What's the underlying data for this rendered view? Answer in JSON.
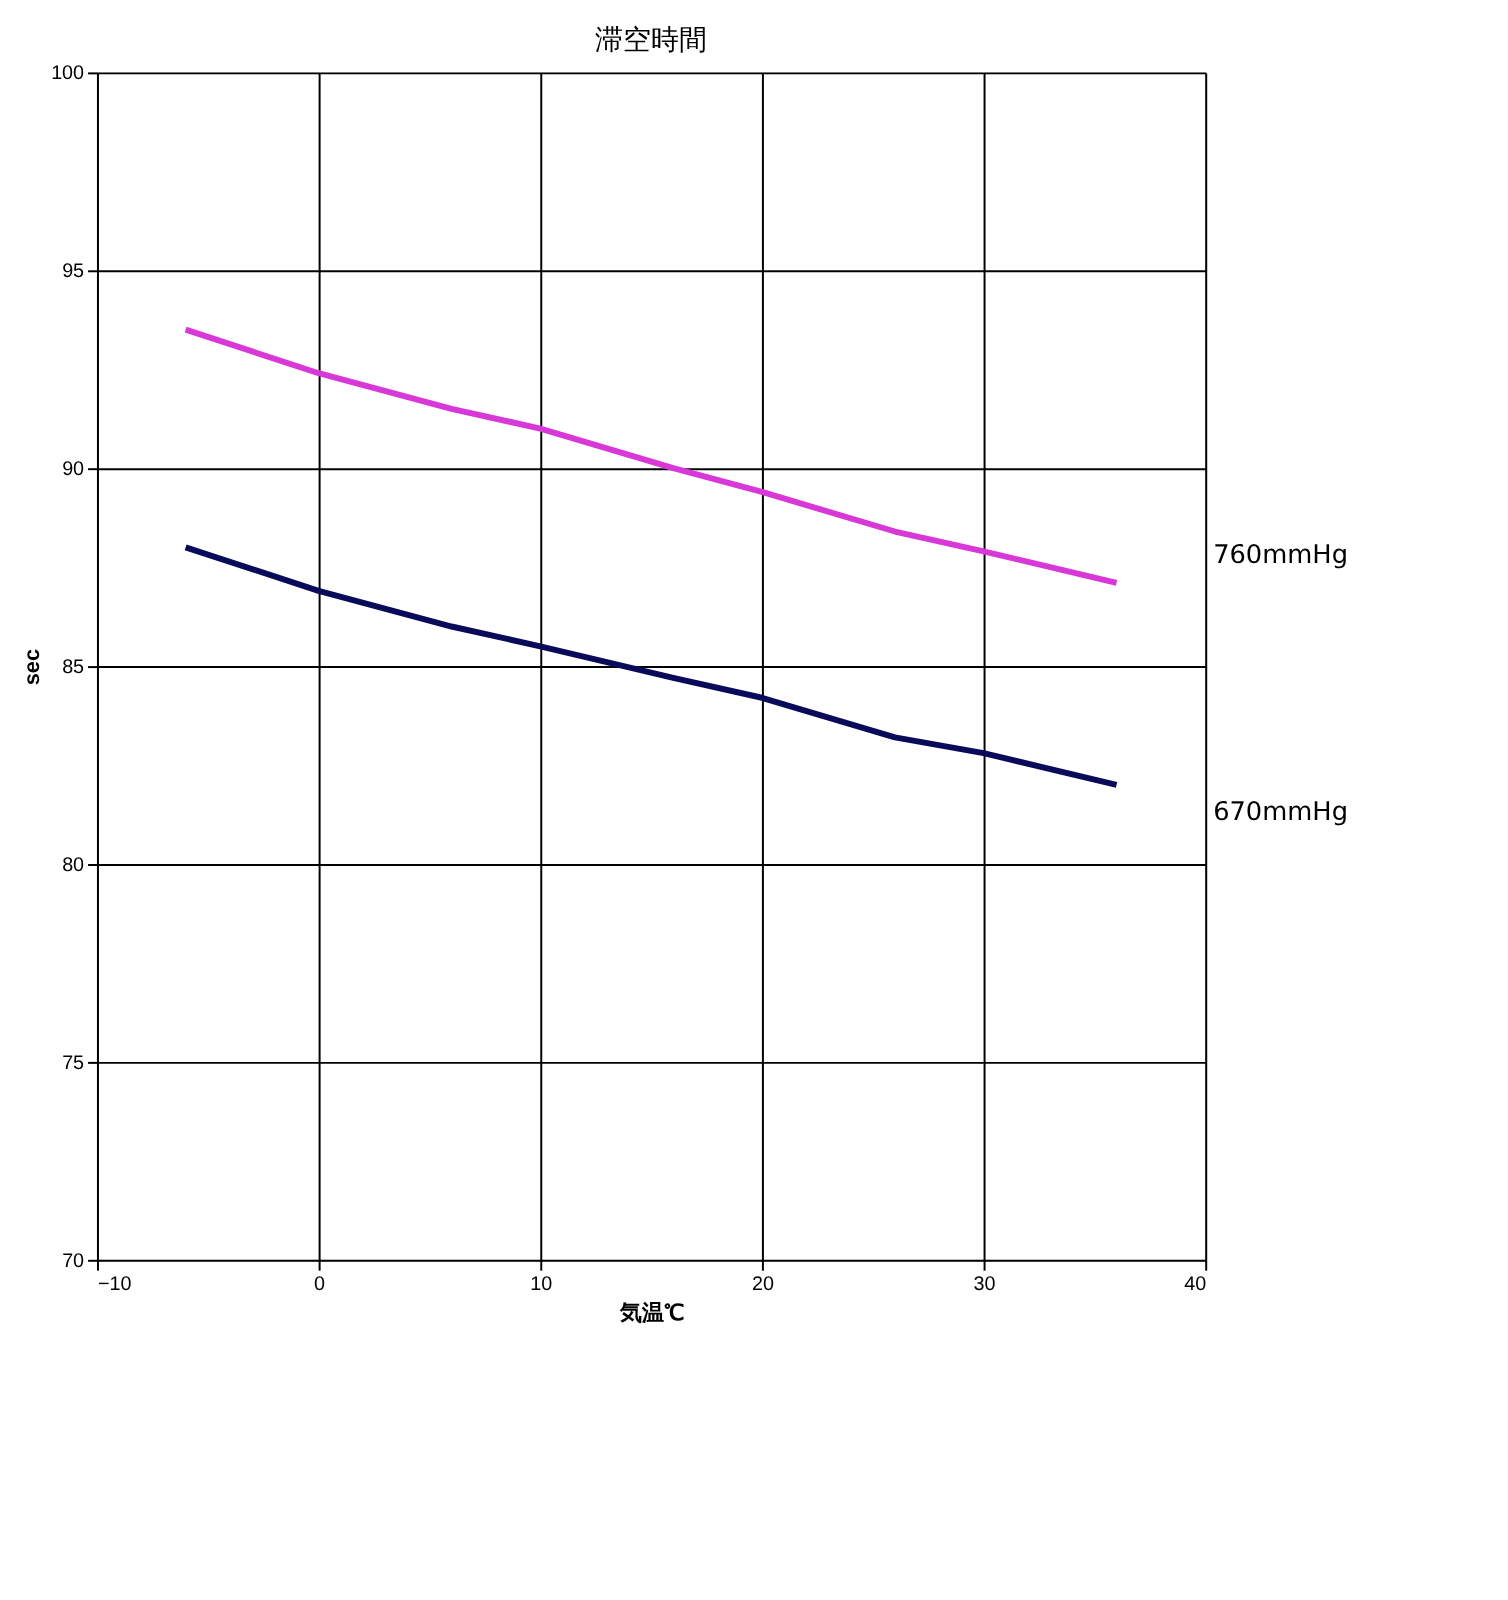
{
  "chart_data": {
    "type": "line",
    "title": "滞空時間",
    "xlabel": "気温℃",
    "ylabel": "sec",
    "xlim": [
      -10,
      40
    ],
    "xticks": [
      -10,
      0,
      10,
      20,
      30,
      40
    ],
    "ylim": [
      70,
      100
    ],
    "yticks": [
      70,
      75,
      80,
      85,
      90,
      95,
      100
    ],
    "x": [
      -6,
      0,
      6,
      10,
      16,
      20,
      26,
      30,
      36
    ],
    "series": [
      {
        "name": "760mmHg",
        "color": "#d838d8",
        "values": [
          93.5,
          92.4,
          91.5,
          91.0,
          90.0,
          89.4,
          88.4,
          87.9,
          87.1
        ]
      },
      {
        "name": "670mmHg",
        "color": "#0a0a5a",
        "values": [
          88.0,
          86.9,
          86.0,
          85.5,
          84.7,
          84.2,
          83.2,
          82.8,
          82.0
        ]
      }
    ],
    "grid": true,
    "legend": false,
    "marker": "none",
    "line_style": "solid"
  }
}
